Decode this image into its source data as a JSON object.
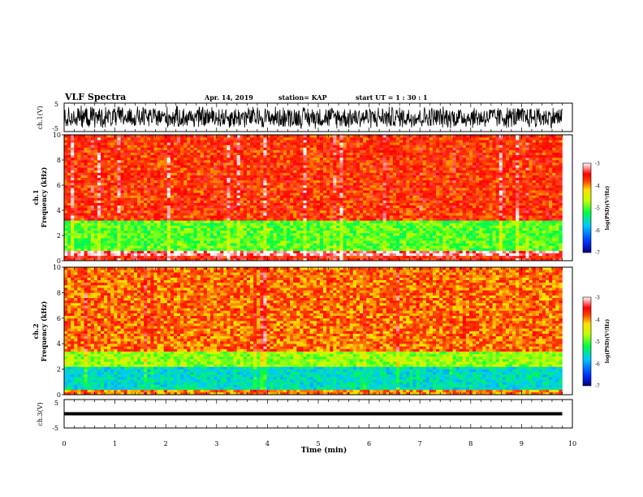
{
  "header": {
    "title": "VLF Spectra",
    "date": "Apr. 14, 2019",
    "station": "station= KAP",
    "start": "start  UT =   1 : 30 : 1"
  },
  "chart_data": [
    {
      "type": "line",
      "panel": "ch.1 waveform",
      "ylabel": "ch.1(V)",
      "ylim": [
        -5,
        5
      ],
      "yticks": [
        "5",
        "-5"
      ],
      "xlim": [
        0,
        10
      ],
      "series": [
        {
          "values_description_free": true,
          "amplitude_range": [
            -4.5,
            4.5
          ]
        }
      ]
    },
    {
      "type": "heatmap",
      "panel": "ch.1 spectrogram",
      "ylabel": "ch.1\nFrequency (kHz)",
      "ylabel_line1": "ch.1",
      "ylabel_line2": "Frequency (kHz)",
      "ylim": [
        0,
        10
      ],
      "yticks": [
        "0",
        "2",
        "4",
        "6",
        "8",
        "10"
      ],
      "xlim": [
        0,
        9.8
      ],
      "bands": [
        {
          "fmin": 0.0,
          "fmax": 0.4,
          "level": -3.6
        },
        {
          "fmin": 0.4,
          "fmax": 0.9,
          "level": -3.2
        },
        {
          "fmin": 0.9,
          "fmax": 3.2,
          "level": -5.0
        },
        {
          "fmin": 3.2,
          "fmax": 10.0,
          "level": -3.7
        }
      ],
      "colorbar": {
        "label": "log(PSD)(V²/Hz)",
        "ticks": [
          "-3",
          "-4",
          "-5",
          "-6",
          "-7"
        ],
        "range": [
          -7,
          -3
        ]
      }
    },
    {
      "type": "heatmap",
      "panel": "ch.2 spectrogram",
      "ylabel_line1": "ch.2",
      "ylabel_line2": "Frequency (kHz)",
      "ylim": [
        0,
        10
      ],
      "yticks": [
        "0",
        "2",
        "4",
        "6",
        "8",
        "10"
      ],
      "xlim": [
        0,
        9.8
      ],
      "bands": [
        {
          "fmin": 0.0,
          "fmax": 0.4,
          "level": -4.0
        },
        {
          "fmin": 0.4,
          "fmax": 2.2,
          "level": -5.6
        },
        {
          "fmin": 2.2,
          "fmax": 3.5,
          "level": -4.8
        },
        {
          "fmin": 3.5,
          "fmax": 10.0,
          "level": -3.9
        }
      ],
      "colorbar": {
        "label": "log(PSD)(V²/Hz)",
        "ticks": [
          "-3",
          "-4",
          "-5",
          "-6",
          "-7"
        ],
        "range": [
          -7,
          -3
        ]
      }
    },
    {
      "type": "line",
      "panel": "ch.3 waveform",
      "ylabel": "ch.3(V)",
      "ylim": [
        -5,
        5
      ],
      "yticks": [
        "5",
        "-5"
      ],
      "series": [
        {
          "x": [
            0,
            9.8
          ],
          "y": [
            0,
            0
          ]
        }
      ]
    }
  ],
  "xaxis": {
    "label": "Time  (min)",
    "ticks": [
      "0",
      "1",
      "2",
      "3",
      "4",
      "5",
      "6",
      "7",
      "8",
      "9",
      "10"
    ],
    "range": [
      0,
      10
    ]
  },
  "colors": {
    "scale": [
      "#0000a0",
      "#0050ff",
      "#00d0ff",
      "#00ff60",
      "#b0ff00",
      "#ffff00",
      "#ffa000",
      "#ff2a00",
      "#ffffff"
    ]
  }
}
